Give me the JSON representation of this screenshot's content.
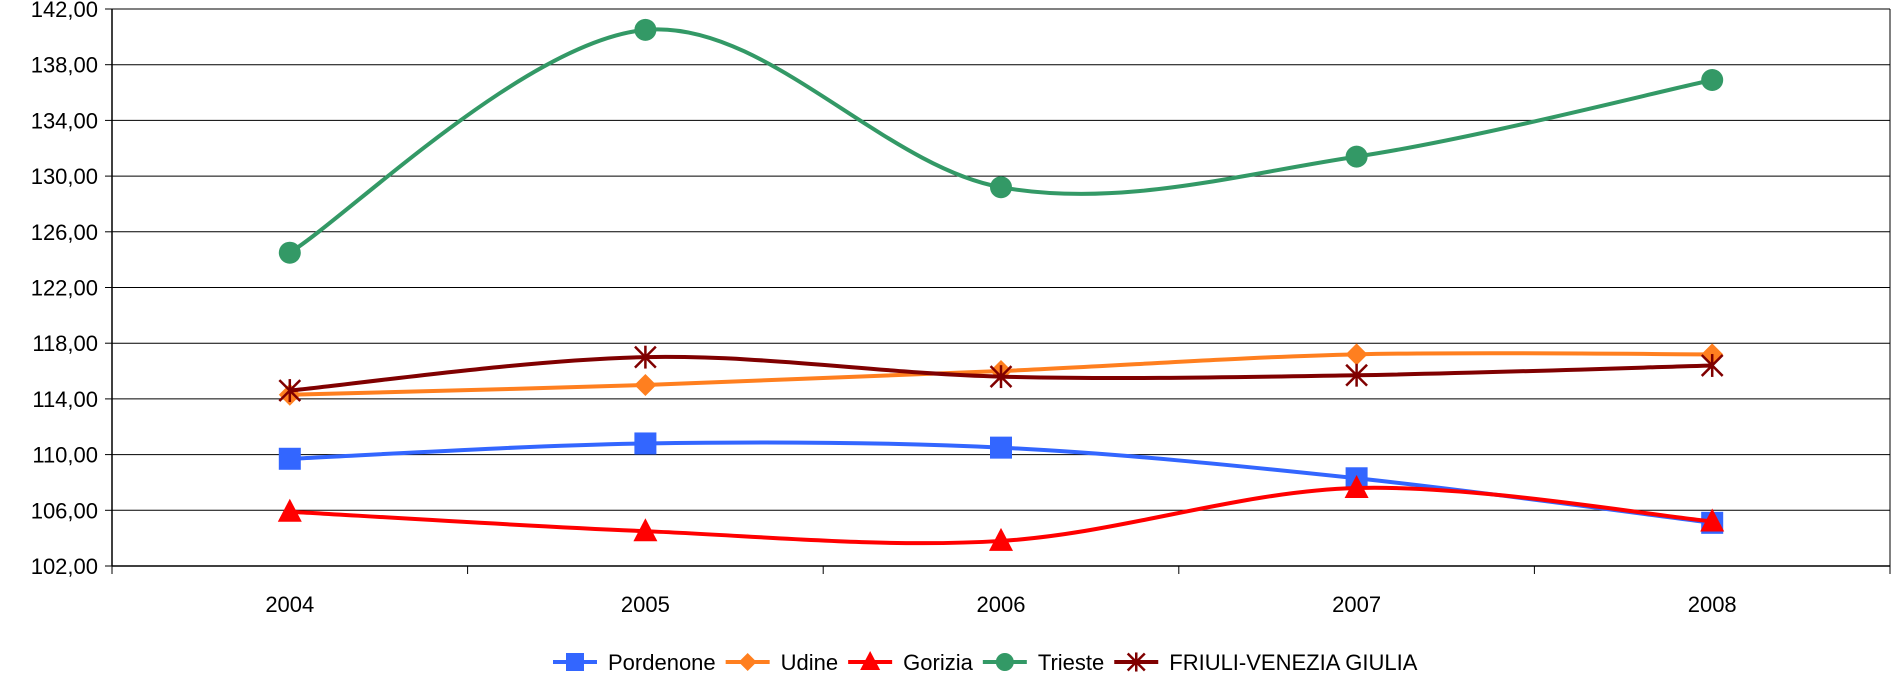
{
  "chart_data": {
    "type": "line",
    "title": "",
    "xlabel": "",
    "ylabel": "",
    "categories": [
      "2004",
      "2005",
      "2006",
      "2007",
      "2008"
    ],
    "ylim": [
      102,
      142
    ],
    "yticks": [
      "102,00",
      "106,00",
      "110,00",
      "114,00",
      "118,00",
      "122,00",
      "126,00",
      "130,00",
      "134,00",
      "138,00",
      "142,00"
    ],
    "grid": "horizontal",
    "smooth": true,
    "legend_position": "bottom",
    "series": [
      {
        "name": "Pordenone",
        "values": [
          109.7,
          110.8,
          110.5,
          108.3,
          105.1
        ],
        "color": "#3366ff",
        "marker": "square"
      },
      {
        "name": "Udine",
        "values": [
          114.3,
          115.0,
          116.0,
          117.2,
          117.2
        ],
        "color": "#ff7f1f",
        "marker": "diamond"
      },
      {
        "name": "Gorizia",
        "values": [
          105.9,
          104.5,
          103.8,
          107.6,
          105.2
        ],
        "color": "#ff0000",
        "marker": "triangle"
      },
      {
        "name": "Trieste",
        "values": [
          124.5,
          140.5,
          129.2,
          131.4,
          136.9
        ],
        "color": "#339966",
        "marker": "circle"
      },
      {
        "name": "FRIULI-VENEZIA GIULIA",
        "values": [
          114.6,
          117.0,
          115.6,
          115.7,
          116.4
        ],
        "color": "#800000",
        "marker": "star"
      }
    ]
  }
}
